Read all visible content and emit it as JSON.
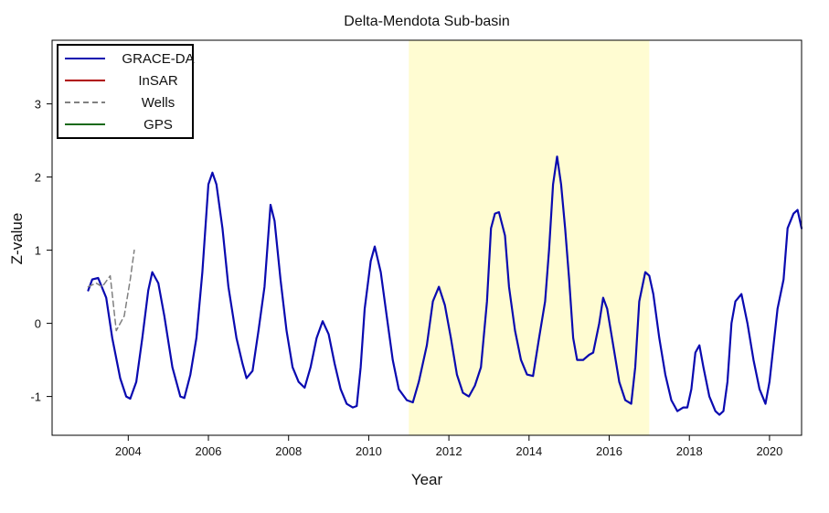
{
  "chart_data": {
    "type": "line",
    "title": "Delta-Mendota Sub-basin",
    "xlabel": "Year",
    "ylabel": "Z-value",
    "xlim": [
      2002.1,
      2020.8
    ],
    "ylim": [
      -1.53,
      3.87
    ],
    "x_ticks": [
      2004,
      2006,
      2008,
      2010,
      2012,
      2014,
      2016,
      2018,
      2020
    ],
    "y_ticks": [
      -1,
      0,
      1,
      2,
      3
    ],
    "grid": false,
    "legend_position": "top-left",
    "highlight_span": {
      "from": 2011.0,
      "to": 2017.0,
      "color": "#fffcd2"
    },
    "legend": [
      {
        "label": "GRACE-DA",
        "color": "#0a0ab0",
        "dash": "solid"
      },
      {
        "label": "InSAR",
        "color": "#b00000",
        "dash": "solid"
      },
      {
        "label": "Wells",
        "color": "#808080",
        "dash": "dashed"
      },
      {
        "label": "GPS",
        "color": "#1a6a1a",
        "dash": "solid"
      }
    ],
    "series": [
      {
        "name": "GRACE-DA",
        "color": "#0a0ab0",
        "dash": "solid",
        "points": [
          [
            2003.0,
            0.45
          ],
          [
            2003.1,
            0.6
          ],
          [
            2003.25,
            0.62
          ],
          [
            2003.45,
            0.35
          ],
          [
            2003.6,
            -0.2
          ],
          [
            2003.8,
            -0.75
          ],
          [
            2003.95,
            -1.0
          ],
          [
            2004.05,
            -1.03
          ],
          [
            2004.2,
            -0.8
          ],
          [
            2004.35,
            -0.2
          ],
          [
            2004.5,
            0.45
          ],
          [
            2004.6,
            0.7
          ],
          [
            2004.75,
            0.55
          ],
          [
            2004.9,
            0.1
          ],
          [
            2005.1,
            -0.6
          ],
          [
            2005.3,
            -1.0
          ],
          [
            2005.4,
            -1.02
          ],
          [
            2005.55,
            -0.7
          ],
          [
            2005.7,
            -0.2
          ],
          [
            2005.85,
            0.7
          ],
          [
            2006.0,
            1.9
          ],
          [
            2006.1,
            2.06
          ],
          [
            2006.2,
            1.9
          ],
          [
            2006.35,
            1.3
          ],
          [
            2006.5,
            0.5
          ],
          [
            2006.7,
            -0.2
          ],
          [
            2006.85,
            -0.55
          ],
          [
            2006.95,
            -0.75
          ],
          [
            2007.1,
            -0.65
          ],
          [
            2007.25,
            -0.1
          ],
          [
            2007.4,
            0.5
          ],
          [
            2007.55,
            1.62
          ],
          [
            2007.65,
            1.4
          ],
          [
            2007.8,
            0.6
          ],
          [
            2007.95,
            -0.1
          ],
          [
            2008.1,
            -0.6
          ],
          [
            2008.25,
            -0.8
          ],
          [
            2008.4,
            -0.88
          ],
          [
            2008.55,
            -0.6
          ],
          [
            2008.7,
            -0.2
          ],
          [
            2008.85,
            0.03
          ],
          [
            2009.0,
            -0.15
          ],
          [
            2009.15,
            -0.55
          ],
          [
            2009.3,
            -0.9
          ],
          [
            2009.45,
            -1.1
          ],
          [
            2009.6,
            -1.15
          ],
          [
            2009.7,
            -1.13
          ],
          [
            2009.8,
            -0.6
          ],
          [
            2009.9,
            0.2
          ],
          [
            2010.05,
            0.85
          ],
          [
            2010.15,
            1.05
          ],
          [
            2010.3,
            0.7
          ],
          [
            2010.45,
            0.1
          ],
          [
            2010.6,
            -0.5
          ],
          [
            2010.75,
            -0.9
          ],
          [
            2010.95,
            -1.05
          ],
          [
            2011.1,
            -1.08
          ],
          [
            2011.25,
            -0.8
          ],
          [
            2011.45,
            -0.3
          ],
          [
            2011.6,
            0.3
          ],
          [
            2011.75,
            0.5
          ],
          [
            2011.9,
            0.25
          ],
          [
            2012.05,
            -0.2
          ],
          [
            2012.2,
            -0.7
          ],
          [
            2012.35,
            -0.95
          ],
          [
            2012.5,
            -1.0
          ],
          [
            2012.65,
            -0.85
          ],
          [
            2012.8,
            -0.6
          ],
          [
            2012.95,
            0.3
          ],
          [
            2013.05,
            1.3
          ],
          [
            2013.15,
            1.5
          ],
          [
            2013.25,
            1.52
          ],
          [
            2013.4,
            1.2
          ],
          [
            2013.5,
            0.5
          ],
          [
            2013.65,
            -0.1
          ],
          [
            2013.8,
            -0.5
          ],
          [
            2013.95,
            -0.7
          ],
          [
            2014.1,
            -0.72
          ],
          [
            2014.25,
            -0.2
          ],
          [
            2014.4,
            0.3
          ],
          [
            2014.5,
            1.0
          ],
          [
            2014.6,
            1.9
          ],
          [
            2014.7,
            2.28
          ],
          [
            2014.8,
            1.9
          ],
          [
            2014.9,
            1.3
          ],
          [
            2015.0,
            0.6
          ],
          [
            2015.1,
            -0.2
          ],
          [
            2015.2,
            -0.5
          ],
          [
            2015.35,
            -0.5
          ],
          [
            2015.5,
            -0.43
          ],
          [
            2015.6,
            -0.4
          ],
          [
            2015.75,
            0.0
          ],
          [
            2015.85,
            0.35
          ],
          [
            2015.95,
            0.2
          ],
          [
            2016.1,
            -0.3
          ],
          [
            2016.25,
            -0.8
          ],
          [
            2016.4,
            -1.05
          ],
          [
            2016.55,
            -1.1
          ],
          [
            2016.65,
            -0.6
          ],
          [
            2016.75,
            0.3
          ],
          [
            2016.9,
            0.7
          ],
          [
            2017.0,
            0.65
          ],
          [
            2017.1,
            0.4
          ],
          [
            2017.25,
            -0.2
          ],
          [
            2017.4,
            -0.7
          ],
          [
            2017.55,
            -1.05
          ],
          [
            2017.7,
            -1.2
          ],
          [
            2017.85,
            -1.15
          ],
          [
            2017.95,
            -1.15
          ],
          [
            2018.05,
            -0.9
          ],
          [
            2018.15,
            -0.4
          ],
          [
            2018.25,
            -0.3
          ],
          [
            2018.35,
            -0.6
          ],
          [
            2018.5,
            -1.0
          ],
          [
            2018.65,
            -1.2
          ],
          [
            2018.75,
            -1.25
          ],
          [
            2018.85,
            -1.2
          ],
          [
            2018.95,
            -0.8
          ],
          [
            2019.05,
            0.0
          ],
          [
            2019.15,
            0.3
          ],
          [
            2019.3,
            0.4
          ],
          [
            2019.45,
            0.0
          ],
          [
            2019.6,
            -0.5
          ],
          [
            2019.75,
            -0.9
          ],
          [
            2019.9,
            -1.1
          ],
          [
            2020.0,
            -0.8
          ],
          [
            2020.1,
            -0.3
          ],
          [
            2020.2,
            0.2
          ],
          [
            2020.35,
            0.6
          ],
          [
            2020.45,
            1.3
          ],
          [
            2020.6,
            1.5
          ],
          [
            2020.7,
            1.55
          ],
          [
            2020.8,
            1.3
          ]
        ]
      },
      {
        "name": "Wells",
        "color": "#808080",
        "dash": "dashed",
        "points": [
          [
            2003.0,
            0.5
          ],
          [
            2003.2,
            0.55
          ],
          [
            2003.35,
            0.5
          ],
          [
            2003.55,
            0.65
          ],
          [
            2003.7,
            -0.1
          ],
          [
            2003.9,
            0.1
          ],
          [
            2004.05,
            0.6
          ],
          [
            2004.15,
            1.0
          ]
        ]
      }
    ]
  }
}
